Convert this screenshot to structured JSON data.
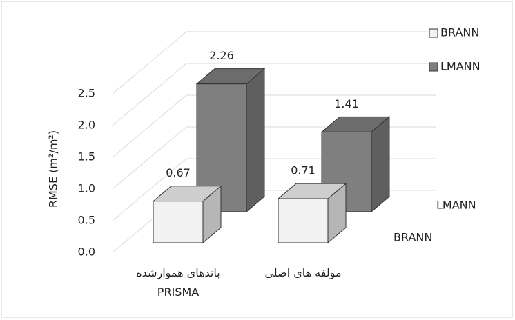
{
  "chart_data": {
    "type": "bar3d",
    "y_label": "RMSE (m²/m²)",
    "categories": [
      "باندهای هموارشده\nPRISMA",
      "مولفه های اصلی"
    ],
    "series": [
      {
        "name": "BRANN",
        "color": "#f2f2f2",
        "values": [
          0.67,
          0.71
        ]
      },
      {
        "name": "LMANN",
        "color": "#7f7f7f",
        "values": [
          2.26,
          1.41
        ]
      }
    ],
    "ylim": [
      0,
      2.5
    ],
    "yticks": [
      {
        "value": 0,
        "label": "0.0"
      },
      0.5,
      {
        "value": 1,
        "label": "1.0"
      },
      1.5,
      {
        "value": 2,
        "label": "2.0"
      },
      2.5
    ],
    "grid": true
  }
}
